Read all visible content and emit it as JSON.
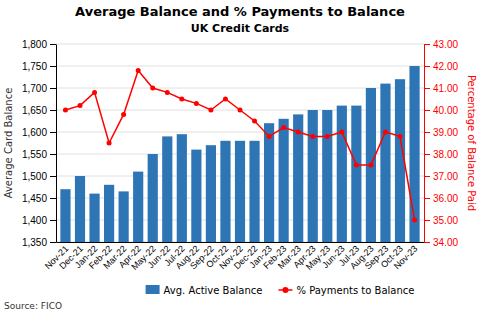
{
  "chart_data": {
    "type": "bar",
    "title": "Average Balance and % Payments to Balance",
    "subtitle": "UK Credit Cards",
    "annotations": [
      "Source: FICO"
    ],
    "ylabel": "Average Card Balance",
    "y2label": "Percentage of Balance Paid",
    "categories": [
      "Nov-21",
      "Dec-21",
      "Jan-22",
      "Feb-22",
      "Mar-22",
      "Apr-22",
      "May-22",
      "Jun-22",
      "Jul-22",
      "Aug-22",
      "Sep-22",
      "Oct-22",
      "Nov-22",
      "Dec-22",
      "Jan-23",
      "Feb-23",
      "Mar-23",
      "Apr-23",
      "May-23",
      "Jun-23",
      "Jul-23",
      "Aug-23",
      "Sep-23",
      "Oct-23",
      "Nov-23"
    ],
    "series": [
      {
        "name": "Avg. Active Balance",
        "type": "bar",
        "color": "#2e75b6",
        "values": [
          1470,
          1500,
          1460,
          1480,
          1465,
          1510,
          1550,
          1590,
          1595,
          1560,
          1570,
          1580,
          1580,
          1580,
          1620,
          1630,
          1640,
          1650,
          1650,
          1660,
          1660,
          1700,
          1710,
          1720,
          1750
        ]
      },
      {
        "name": "% Payments to Balance",
        "type": "line",
        "color": "#ff0000",
        "marker": "circle",
        "axis": "y2",
        "values": [
          40.0,
          40.2,
          40.8,
          38.5,
          39.8,
          41.8,
          41.0,
          40.8,
          40.5,
          40.3,
          40.0,
          40.5,
          40.0,
          39.5,
          38.8,
          39.2,
          39.0,
          38.8,
          38.8,
          39.0,
          37.5,
          37.5,
          39.0,
          38.8,
          35.0
        ]
      }
    ],
    "ylim": [
      1350,
      1800
    ],
    "yticks": [
      {
        "value": 1350,
        "label": "1,350"
      },
      {
        "value": 1400,
        "label": "1,400"
      },
      {
        "value": 1450,
        "label": "1,450"
      },
      {
        "value": 1500,
        "label": "1,500"
      },
      {
        "value": 1550,
        "label": "1,550"
      },
      {
        "value": 1600,
        "label": "1,600"
      },
      {
        "value": 1650,
        "label": "1,650"
      },
      {
        "value": 1700,
        "label": "1,700"
      },
      {
        "value": 1750,
        "label": "1,750"
      },
      {
        "value": 1800,
        "label": "1,800"
      }
    ],
    "y2lim": [
      34.0,
      43.0
    ],
    "y2ticks": [
      {
        "value": 34.0,
        "label": "34.00"
      },
      {
        "value": 35.0,
        "label": "35.00"
      },
      {
        "value": 36.0,
        "label": "36.00"
      },
      {
        "value": 37.0,
        "label": "37.00"
      },
      {
        "value": 38.0,
        "label": "38.00"
      },
      {
        "value": 39.0,
        "label": "39.00"
      },
      {
        "value": 40.0,
        "label": "40.00"
      },
      {
        "value": 41.0,
        "label": "41.00"
      },
      {
        "value": 42.0,
        "label": "42.00"
      },
      {
        "value": 43.0,
        "label": "43.00"
      }
    ],
    "grid": true,
    "legend": "bottom"
  }
}
